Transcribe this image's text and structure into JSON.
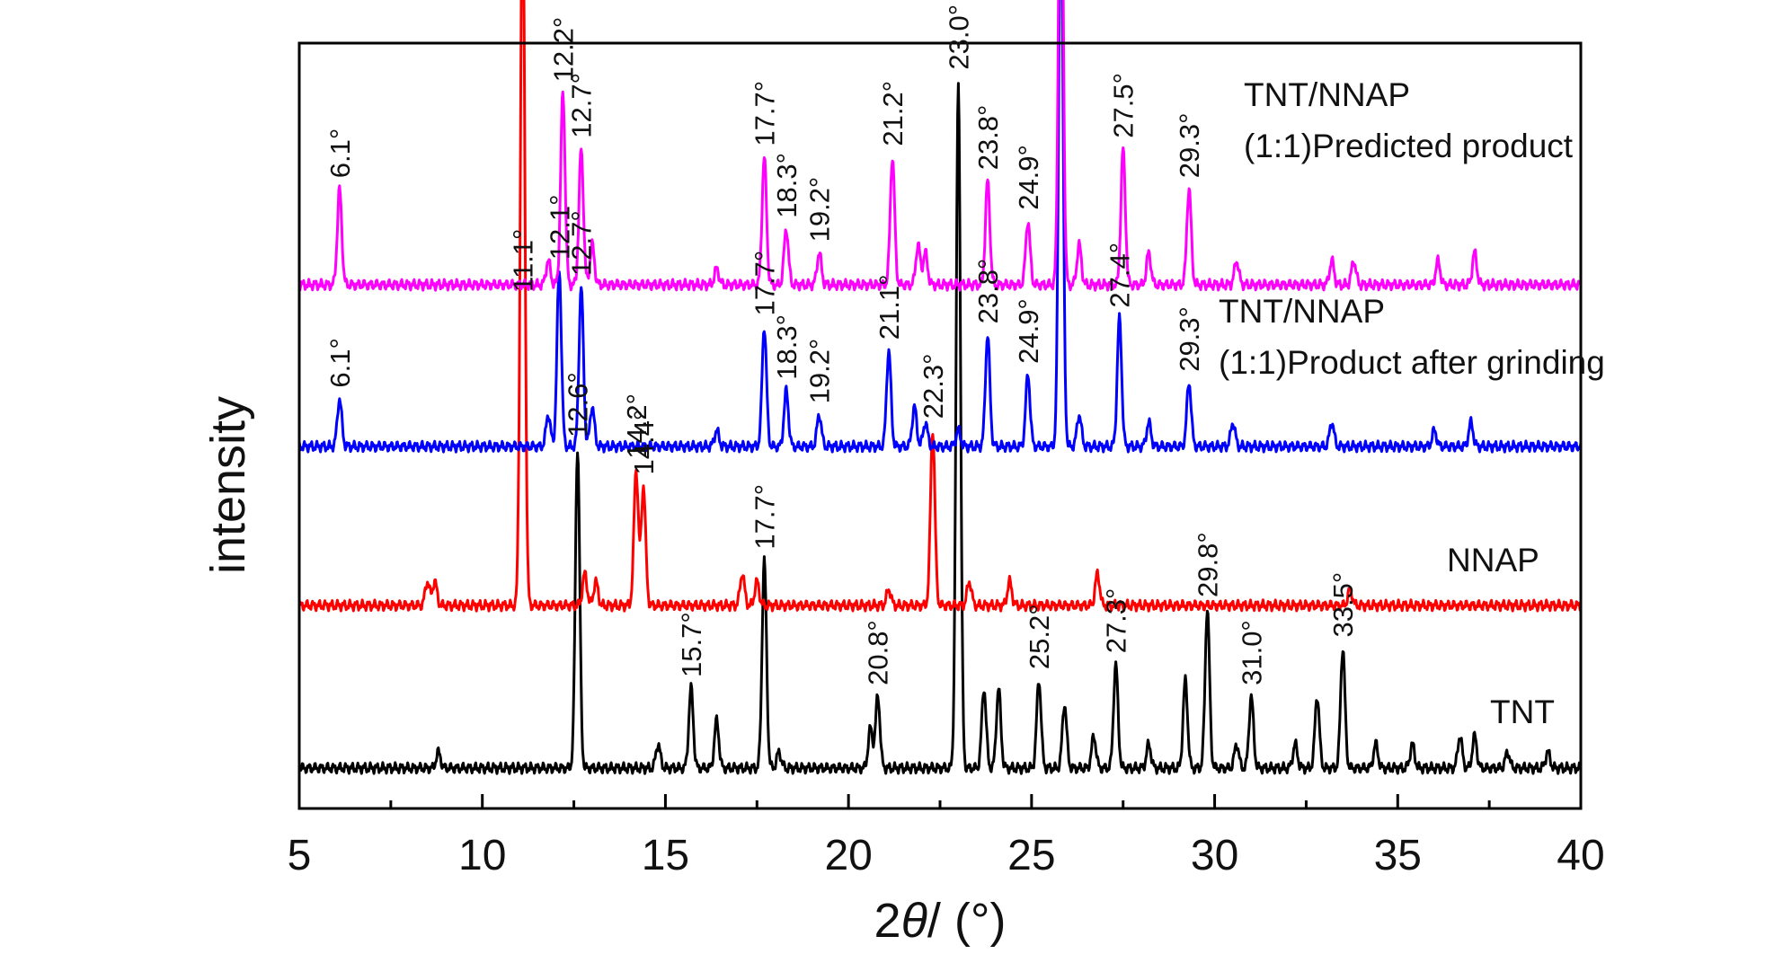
{
  "chart_data": {
    "type": "line",
    "title": "",
    "xlabel_prefix": "2",
    "xlabel_symbol": "θ",
    "xlabel_suffix": "/ (°)",
    "ylabel": "intensity",
    "xlim": [
      5,
      40
    ],
    "x_ticks": [
      "5",
      "10",
      "15",
      "20",
      "25",
      "30",
      "35",
      "40"
    ],
    "grid": false,
    "series": [
      {
        "name": "TNT",
        "color": "#000000",
        "peaks": [
          {
            "x": 8.8,
            "h": 0.02,
            "label": ""
          },
          {
            "x": 12.6,
            "h": 0.4,
            "label": "12.6°"
          },
          {
            "x": 14.8,
            "h": 0.03,
            "label": ""
          },
          {
            "x": 15.7,
            "h": 0.1,
            "label": "15.7°"
          },
          {
            "x": 16.4,
            "h": 0.06,
            "label": ""
          },
          {
            "x": 17.7,
            "h": 0.26,
            "label": "17.7°"
          },
          {
            "x": 18.1,
            "h": 0.02,
            "label": ""
          },
          {
            "x": 20.6,
            "h": 0.05,
            "label": ""
          },
          {
            "x": 20.8,
            "h": 0.09,
            "label": "20.8°"
          },
          {
            "x": 23.0,
            "h": 0.86,
            "label": "23.0°"
          },
          {
            "x": 23.7,
            "h": 0.1,
            "label": ""
          },
          {
            "x": 24.1,
            "h": 0.1,
            "label": ""
          },
          {
            "x": 25.2,
            "h": 0.11,
            "label": "25.2°"
          },
          {
            "x": 25.9,
            "h": 0.08,
            "label": ""
          },
          {
            "x": 26.7,
            "h": 0.04,
            "label": ""
          },
          {
            "x": 27.3,
            "h": 0.13,
            "label": "27.3°"
          },
          {
            "x": 28.2,
            "h": 0.03,
            "label": ""
          },
          {
            "x": 29.2,
            "h": 0.11,
            "label": ""
          },
          {
            "x": 29.8,
            "h": 0.2,
            "label": "29.8°"
          },
          {
            "x": 30.6,
            "h": 0.03,
            "label": ""
          },
          {
            "x": 31.0,
            "h": 0.09,
            "label": "31.0°"
          },
          {
            "x": 32.2,
            "h": 0.03,
            "label": ""
          },
          {
            "x": 32.8,
            "h": 0.09,
            "label": ""
          },
          {
            "x": 33.5,
            "h": 0.15,
            "label": "33.5°"
          },
          {
            "x": 34.4,
            "h": 0.03,
            "label": ""
          },
          {
            "x": 35.4,
            "h": 0.03,
            "label": ""
          },
          {
            "x": 36.7,
            "h": 0.04,
            "label": ""
          },
          {
            "x": 37.1,
            "h": 0.04,
            "label": ""
          },
          {
            "x": 38.0,
            "h": 0.02,
            "label": ""
          },
          {
            "x": 39.1,
            "h": 0.02,
            "label": ""
          }
        ]
      },
      {
        "name": "NNAP",
        "color": "#ff0000",
        "peaks": [
          {
            "x": 8.5,
            "h": 0.03,
            "label": ""
          },
          {
            "x": 8.7,
            "h": 0.03,
            "label": ""
          },
          {
            "x": 11.1,
            "h": 0.92,
            "label": "11.1°"
          },
          {
            "x": 12.8,
            "h": 0.04,
            "label": ""
          },
          {
            "x": 13.1,
            "h": 0.03,
            "label": ""
          },
          {
            "x": 14.2,
            "h": 0.17,
            "label": "14.2°"
          },
          {
            "x": 14.4,
            "h": 0.15,
            "label": "14.4°"
          },
          {
            "x": 17.1,
            "h": 0.04,
            "label": ""
          },
          {
            "x": 17.5,
            "h": 0.03,
            "label": ""
          },
          {
            "x": 21.1,
            "h": 0.02,
            "label": ""
          },
          {
            "x": 22.3,
            "h": 0.22,
            "label": "22.3°"
          },
          {
            "x": 23.3,
            "h": 0.03,
            "label": ""
          },
          {
            "x": 24.4,
            "h": 0.03,
            "label": ""
          },
          {
            "x": 26.8,
            "h": 0.04,
            "label": ""
          },
          {
            "x": 33.7,
            "h": 0.02,
            "label": ""
          }
        ]
      },
      {
        "name": "TNT/NNAP (1:1)Product after grinding",
        "color": "#0000ff",
        "peaks": [
          {
            "x": 6.1,
            "h": 0.06,
            "label": "6.1°"
          },
          {
            "x": 11.8,
            "h": 0.04,
            "label": ""
          },
          {
            "x": 12.1,
            "h": 0.22,
            "label": "12.1°"
          },
          {
            "x": 12.7,
            "h": 0.2,
            "label": "12.7°"
          },
          {
            "x": 13.0,
            "h": 0.05,
            "label": ""
          },
          {
            "x": 16.4,
            "h": 0.02,
            "label": ""
          },
          {
            "x": 17.7,
            "h": 0.15,
            "label": "17.7°"
          },
          {
            "x": 18.3,
            "h": 0.07,
            "label": "18.3°"
          },
          {
            "x": 19.2,
            "h": 0.04,
            "label": "19.2°"
          },
          {
            "x": 21.1,
            "h": 0.12,
            "label": "21.1°"
          },
          {
            "x": 21.8,
            "h": 0.05,
            "label": ""
          },
          {
            "x": 22.1,
            "h": 0.03,
            "label": ""
          },
          {
            "x": 23.0,
            "h": 0.02,
            "label": ""
          },
          {
            "x": 23.8,
            "h": 0.14,
            "label": "23.8°"
          },
          {
            "x": 24.9,
            "h": 0.09,
            "label": "24.9°"
          },
          {
            "x": 25.8,
            "h": 0.71,
            "label": ""
          },
          {
            "x": 26.3,
            "h": 0.04,
            "label": ""
          },
          {
            "x": 27.4,
            "h": 0.16,
            "label": "27.4°"
          },
          {
            "x": 28.2,
            "h": 0.03,
            "label": ""
          },
          {
            "x": 29.3,
            "h": 0.08,
            "label": "29.3°"
          },
          {
            "x": 30.5,
            "h": 0.03,
            "label": ""
          },
          {
            "x": 33.2,
            "h": 0.03,
            "label": ""
          },
          {
            "x": 36.0,
            "h": 0.02,
            "label": ""
          },
          {
            "x": 37.0,
            "h": 0.03,
            "label": ""
          }
        ]
      },
      {
        "name": "TNT/NNAP (1:1)Predicted product",
        "color": "#ff00ff",
        "peaks": [
          {
            "x": 6.1,
            "h": 0.12,
            "label": "6.1°"
          },
          {
            "x": 11.8,
            "h": 0.03,
            "label": ""
          },
          {
            "x": 12.2,
            "h": 0.24,
            "label": "12.2°"
          },
          {
            "x": 12.7,
            "h": 0.17,
            "label": "12.7°"
          },
          {
            "x": 13.0,
            "h": 0.05,
            "label": ""
          },
          {
            "x": 16.4,
            "h": 0.02,
            "label": ""
          },
          {
            "x": 17.7,
            "h": 0.16,
            "label": "17.7°"
          },
          {
            "x": 18.3,
            "h": 0.07,
            "label": "18.3°"
          },
          {
            "x": 19.2,
            "h": 0.04,
            "label": "19.2°"
          },
          {
            "x": 21.2,
            "h": 0.16,
            "label": "21.2°"
          },
          {
            "x": 21.9,
            "h": 0.05,
            "label": ""
          },
          {
            "x": 22.1,
            "h": 0.04,
            "label": ""
          },
          {
            "x": 23.8,
            "h": 0.13,
            "label": "23.8°"
          },
          {
            "x": 24.9,
            "h": 0.08,
            "label": "24.9°"
          },
          {
            "x": 25.8,
            "h": 0.66,
            "label": ""
          },
          {
            "x": 26.3,
            "h": 0.05,
            "label": ""
          },
          {
            "x": 27.5,
            "h": 0.17,
            "label": "27.5°"
          },
          {
            "x": 28.2,
            "h": 0.04,
            "label": ""
          },
          {
            "x": 29.3,
            "h": 0.12,
            "label": "29.3°"
          },
          {
            "x": 30.6,
            "h": 0.03,
            "label": ""
          },
          {
            "x": 33.2,
            "h": 0.03,
            "label": ""
          },
          {
            "x": 33.8,
            "h": 0.03,
            "label": ""
          },
          {
            "x": 36.1,
            "h": 0.03,
            "label": ""
          },
          {
            "x": 37.1,
            "h": 0.04,
            "label": ""
          }
        ]
      }
    ],
    "series_labels": {
      "predicted_line1": "TNT/NNAP",
      "predicted_line2": "(1:1)Predicted product",
      "grinding_line1": "TNT/NNAP",
      "grinding_line2": "(1:1)Product after grinding",
      "nnap": "NNAP",
      "tnt": "TNT"
    }
  }
}
